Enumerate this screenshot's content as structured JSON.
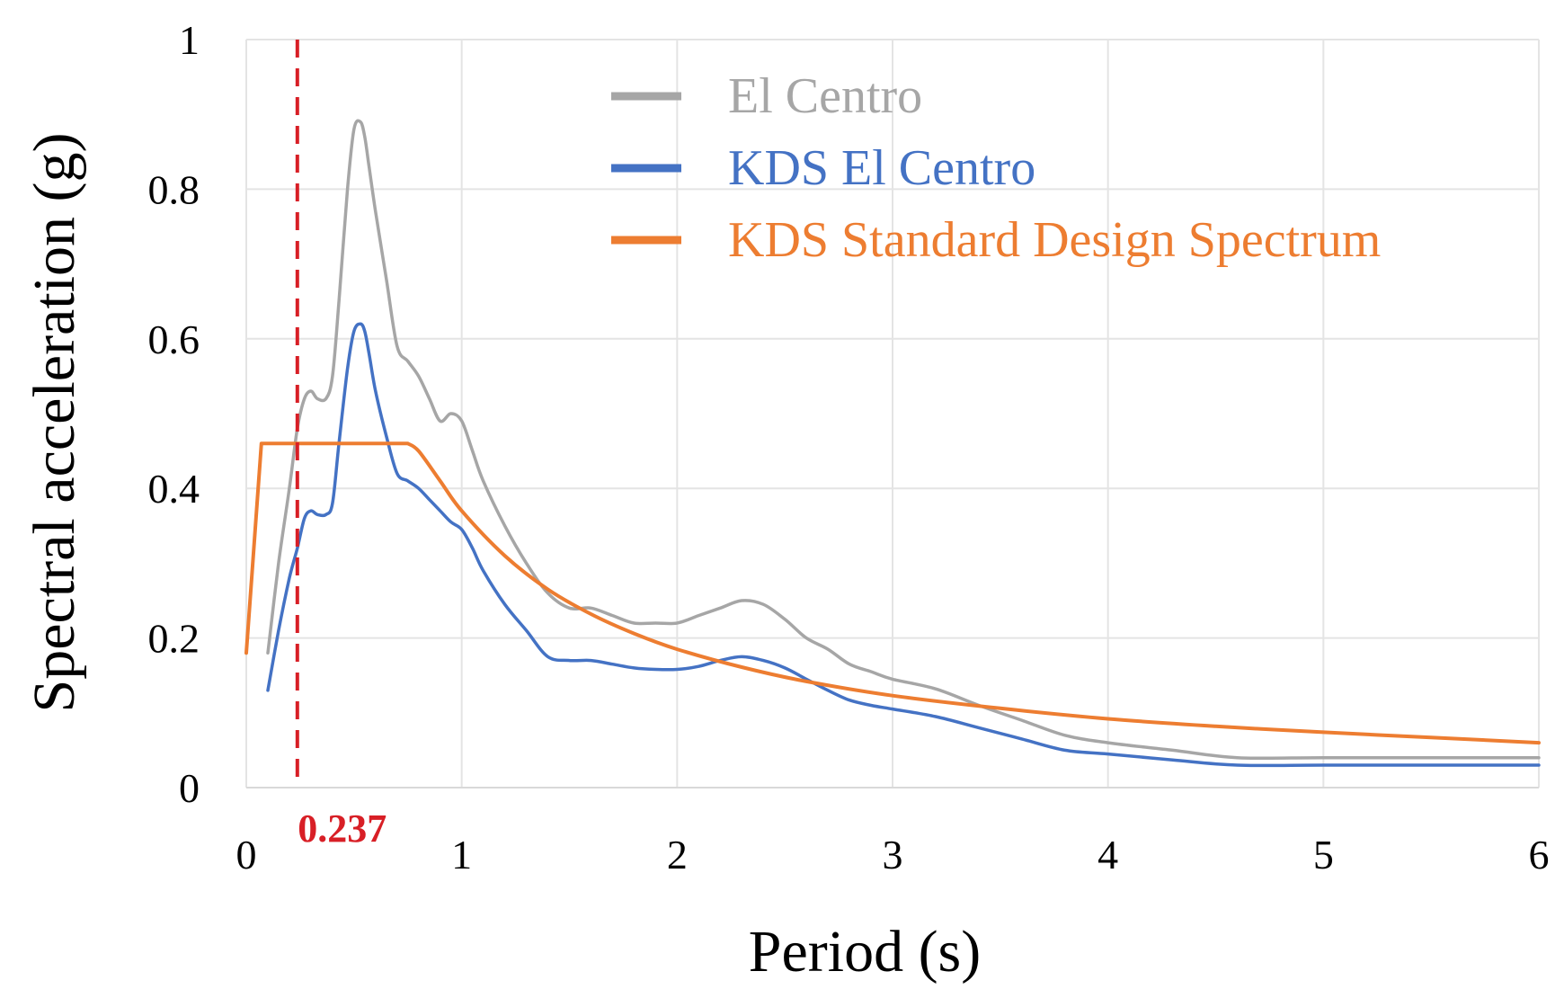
{
  "chart_data": {
    "type": "line",
    "title": "",
    "xlabel": "Period (s)",
    "ylabel": "Spectral acceleration (g)",
    "xlim": [
      0,
      6
    ],
    "ylim": [
      0,
      1
    ],
    "xticks": [
      0,
      1,
      2,
      3,
      4,
      5,
      6
    ],
    "xtick_labels": [
      "0",
      "1",
      "2",
      "3",
      "4",
      "5",
      "6"
    ],
    "yticks": [
      0,
      0.2,
      0.4,
      0.6,
      0.8,
      1
    ],
    "ytick_labels": [
      "0",
      "0.2",
      "0.4",
      "0.6",
      "0.8",
      "1"
    ],
    "grid": true,
    "legend_position": "top-right",
    "series": [
      {
        "name": "El Centro",
        "color": "#a6a6a6",
        "x": [
          0.1,
          0.15,
          0.2,
          0.237,
          0.27,
          0.3,
          0.33,
          0.37,
          0.4,
          0.43,
          0.47,
          0.5,
          0.53,
          0.55,
          0.57,
          0.6,
          0.65,
          0.7,
          0.75,
          0.8,
          0.85,
          0.9,
          0.95,
          1.0,
          1.05,
          1.1,
          1.2,
          1.3,
          1.4,
          1.5,
          1.6,
          1.7,
          1.8,
          1.9,
          2.0,
          2.1,
          2.2,
          2.3,
          2.4,
          2.5,
          2.6,
          2.7,
          2.8,
          2.9,
          3.0,
          3.2,
          3.4,
          3.6,
          3.8,
          4.0,
          4.3,
          4.6,
          5.0,
          5.5,
          6.0
        ],
        "values": [
          0.18,
          0.3,
          0.4,
          0.48,
          0.52,
          0.53,
          0.52,
          0.52,
          0.55,
          0.65,
          0.8,
          0.88,
          0.89,
          0.87,
          0.83,
          0.77,
          0.68,
          0.59,
          0.57,
          0.55,
          0.52,
          0.49,
          0.5,
          0.49,
          0.45,
          0.41,
          0.35,
          0.3,
          0.26,
          0.24,
          0.24,
          0.23,
          0.22,
          0.22,
          0.22,
          0.23,
          0.24,
          0.25,
          0.245,
          0.225,
          0.2,
          0.185,
          0.165,
          0.155,
          0.145,
          0.132,
          0.11,
          0.09,
          0.07,
          0.06,
          0.05,
          0.04,
          0.04,
          0.04,
          0.04
        ]
      },
      {
        "name": "KDS El Centro",
        "color": "#4472c4",
        "x": [
          0.1,
          0.15,
          0.2,
          0.237,
          0.27,
          0.3,
          0.33,
          0.37,
          0.4,
          0.43,
          0.47,
          0.5,
          0.53,
          0.55,
          0.57,
          0.6,
          0.65,
          0.7,
          0.75,
          0.8,
          0.85,
          0.9,
          0.95,
          1.0,
          1.05,
          1.1,
          1.2,
          1.3,
          1.4,
          1.5,
          1.6,
          1.7,
          1.8,
          1.9,
          2.0,
          2.1,
          2.2,
          2.3,
          2.4,
          2.5,
          2.6,
          2.7,
          2.8,
          2.9,
          3.0,
          3.2,
          3.4,
          3.6,
          3.8,
          4.0,
          4.3,
          4.6,
          5.0,
          5.5,
          6.0
        ],
        "values": [
          0.13,
          0.21,
          0.28,
          0.32,
          0.36,
          0.37,
          0.365,
          0.365,
          0.38,
          0.46,
          0.56,
          0.61,
          0.62,
          0.61,
          0.58,
          0.53,
          0.47,
          0.42,
          0.41,
          0.4,
          0.385,
          0.37,
          0.355,
          0.345,
          0.32,
          0.29,
          0.245,
          0.21,
          0.175,
          0.17,
          0.17,
          0.165,
          0.16,
          0.158,
          0.158,
          0.162,
          0.17,
          0.175,
          0.17,
          0.16,
          0.145,
          0.13,
          0.117,
          0.11,
          0.105,
          0.095,
          0.08,
          0.065,
          0.05,
          0.045,
          0.037,
          0.03,
          0.03,
          0.03,
          0.03
        ]
      },
      {
        "name": "KDS Standard Design Spectrum",
        "color": "#ed7d31",
        "x": [
          0.0,
          0.07,
          0.75,
          0.8,
          0.9,
          1.0,
          1.2,
          1.4,
          1.6,
          1.8,
          2.0,
          2.3,
          2.6,
          3.0,
          3.5,
          4.0,
          4.5,
          5.0,
          5.5,
          6.0
        ],
        "values": [
          0.18,
          0.46,
          0.46,
          0.45,
          0.41,
          0.37,
          0.31,
          0.265,
          0.232,
          0.206,
          0.185,
          0.161,
          0.142,
          0.123,
          0.106,
          0.092,
          0.082,
          0.074,
          0.067,
          0.06
        ]
      }
    ],
    "annotations": [
      {
        "type": "vertical-dashed-line",
        "x": 0.237,
        "label": "0.237",
        "color": "#d81f26"
      }
    ]
  }
}
